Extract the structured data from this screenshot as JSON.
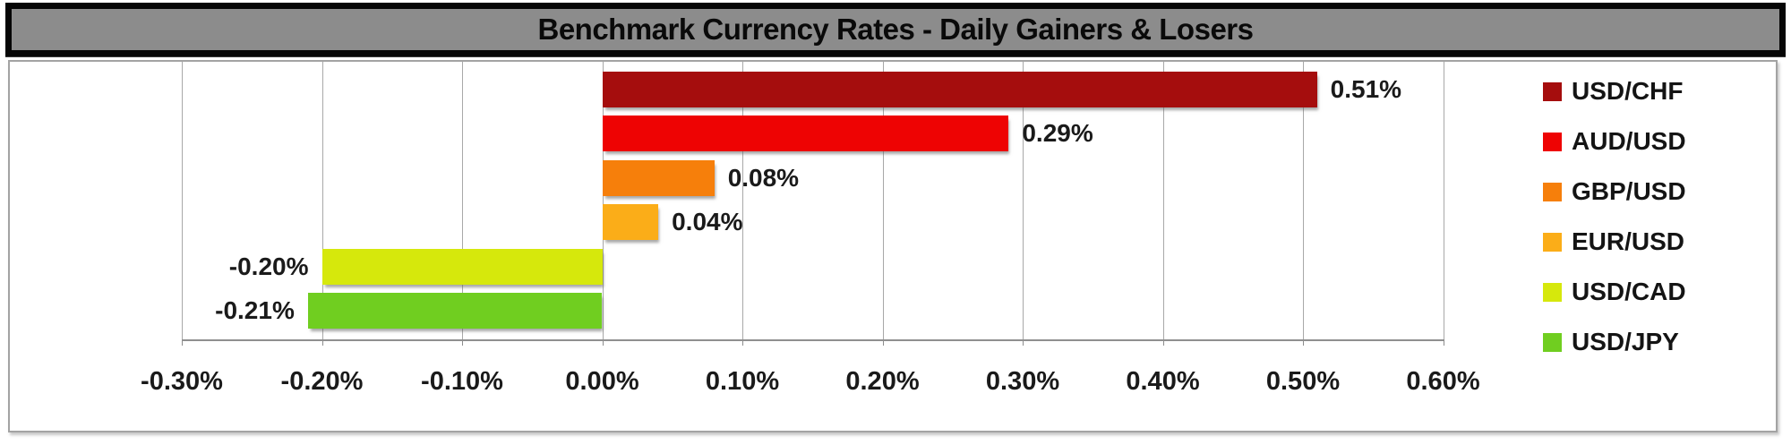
{
  "title": "Benchmark Currency Rates - Daily Gainers & Losers",
  "chart_data": {
    "type": "bar",
    "orientation": "horizontal",
    "title": "Benchmark Currency Rates - Daily Gainers & Losers",
    "categories": [
      "USD/CHF",
      "AUD/USD",
      "GBP/USD",
      "EUR/USD",
      "USD/CAD",
      "USD/JPY"
    ],
    "values": [
      0.51,
      0.29,
      0.08,
      0.04,
      -0.2,
      -0.21
    ],
    "value_labels": [
      "0.51%",
      "0.29%",
      "0.08%",
      "0.04%",
      "-0.20%",
      "-0.21%"
    ],
    "bar_colors": [
      "#a50d0d",
      "#ee0303",
      "#f67f0b",
      "#fbad18",
      "#d6e80c",
      "#70ce20"
    ],
    "xlim": [
      -0.3,
      0.6
    ],
    "x_ticks": [
      -0.3,
      -0.2,
      -0.1,
      0.0,
      0.1,
      0.2,
      0.3,
      0.4,
      0.5,
      0.6
    ],
    "x_tick_labels": [
      "-0.30%",
      "-0.20%",
      "-0.10%",
      "0.00%",
      "0.10%",
      "0.20%",
      "0.30%",
      "0.40%",
      "0.50%",
      "0.60%"
    ],
    "grid": true,
    "legend_position": "right"
  },
  "legend": {
    "items": [
      {
        "label": "USD/CHF",
        "color": "#a50d0d"
      },
      {
        "label": "AUD/USD",
        "color": "#ee0303"
      },
      {
        "label": "GBP/USD",
        "color": "#f67f0b"
      },
      {
        "label": "EUR/USD",
        "color": "#fbad18"
      },
      {
        "label": "USD/CAD",
        "color": "#d6e80c"
      },
      {
        "label": "USD/JPY",
        "color": "#70ce20"
      }
    ]
  },
  "colors": {
    "title_background": "#8c8c8c",
    "title_border": "#060606",
    "frame_border": "#a3a3a3",
    "gridline": "#a8a8a8",
    "axis_line": "#8f8f8f",
    "label_text": "#1a1a1a"
  }
}
